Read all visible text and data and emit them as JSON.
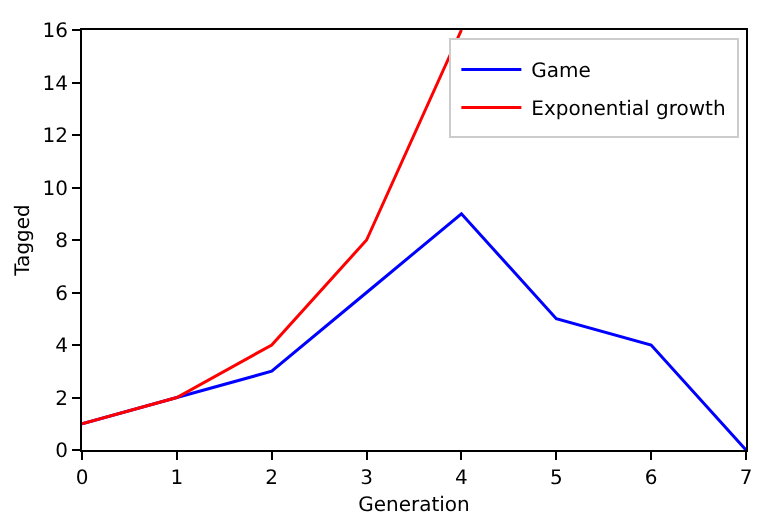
{
  "chart_data": {
    "type": "line",
    "xlabel": "Generation",
    "ylabel": "Tagged",
    "x": [
      0,
      1,
      2,
      3,
      4,
      5,
      6,
      7
    ],
    "series": [
      {
        "name": "Game",
        "color": "#0000ff",
        "values": [
          1,
          2,
          3,
          6,
          9,
          5,
          4,
          0
        ]
      },
      {
        "name": "Exponential growth",
        "color": "#ff0000",
        "x": [
          0,
          1,
          2,
          3,
          4
        ],
        "values": [
          1,
          2,
          4,
          8,
          16
        ]
      }
    ],
    "xlim": [
      0,
      7
    ],
    "xticks": [
      0,
      1,
      2,
      3,
      4,
      5,
      6,
      7
    ],
    "ylim": [
      0,
      16
    ],
    "yticks": [
      0,
      2,
      4,
      6,
      8,
      10,
      12,
      14,
      16
    ],
    "legend": "top right",
    "marker": "none",
    "line_style": "solid"
  }
}
